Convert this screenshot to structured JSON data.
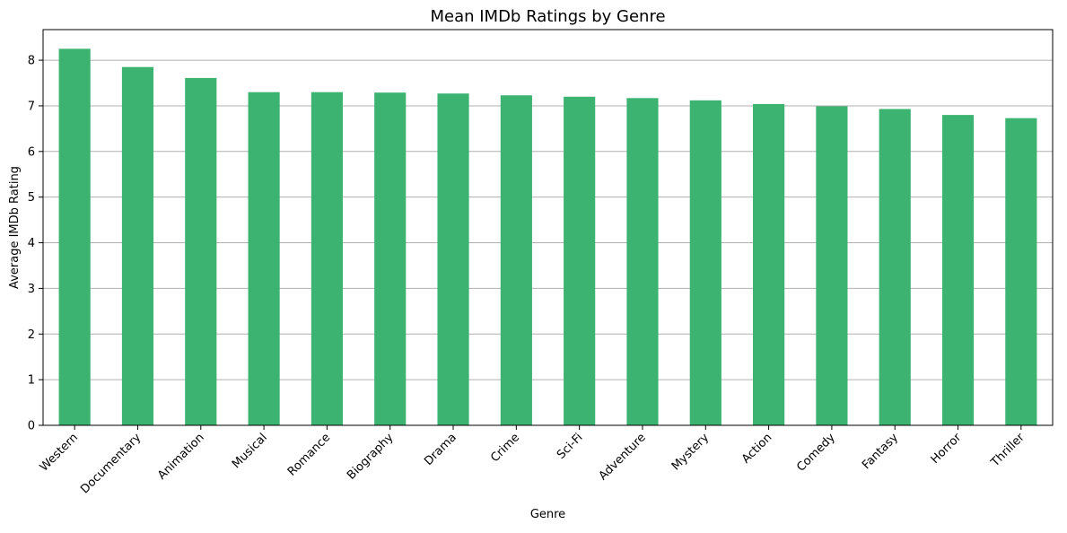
{
  "chart_data": {
    "type": "bar",
    "title": "Mean IMDb Ratings by Genre",
    "xlabel": "Genre",
    "ylabel": "Average IMDb Rating",
    "categories": [
      "Western",
      "Documentary",
      "Animation",
      "Musical",
      "Romance",
      "Biography",
      "Drama",
      "Crime",
      "Sci-Fi",
      "Adventure",
      "Mystery",
      "Action",
      "Comedy",
      "Fantasy",
      "Horror",
      "Thriller"
    ],
    "values": [
      8.25,
      7.85,
      7.61,
      7.3,
      7.3,
      7.29,
      7.27,
      7.23,
      7.2,
      7.17,
      7.12,
      7.04,
      6.99,
      6.93,
      6.8,
      6.73
    ],
    "ylim": [
      0,
      8.67
    ],
    "yticks": [
      0,
      1,
      2,
      3,
      4,
      5,
      6,
      7,
      8
    ],
    "grid": "horizontal",
    "colors": {
      "bar": "#3CB371",
      "grid": "#b0b0b0",
      "axis": "#000000"
    }
  }
}
